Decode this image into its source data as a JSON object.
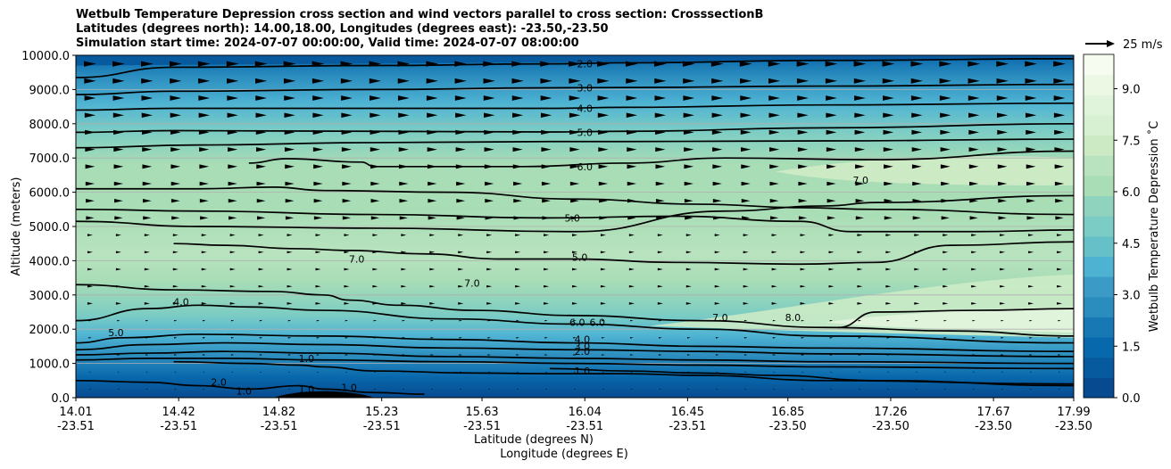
{
  "chart_data": {
    "type": "heatmap",
    "title_lines": [
      "Wetbulb Temperature Depression cross section and wind vectors parallel to cross section: CrosssectionB",
      "Latitudes (degrees north): 14.00,18.00, Longitudes (degrees east): -23.50,-23.50",
      "Simulation start time: 2024-07-07 00:00:00, Valid time: 2024-07-07 08:00:00"
    ],
    "xlabel_lat": "Latitude (degrees N)",
    "xlabel_lon": "Longitude (degrees E)",
    "ylabel": "Altitude (meters)",
    "ylim": [
      0,
      10000
    ],
    "y_ticks": [
      "0.0",
      "1000.0",
      "2000.0",
      "3000.0",
      "4000.0",
      "5000.0",
      "6000.0",
      "7000.0",
      "8000.0",
      "9000.0",
      "10000.0"
    ],
    "x_ticks": [
      {
        "lat": "14.01",
        "lon": "-23.51"
      },
      {
        "lat": "14.42",
        "lon": "-23.51"
      },
      {
        "lat": "14.82",
        "lon": "-23.51"
      },
      {
        "lat": "15.23",
        "lon": "-23.51"
      },
      {
        "lat": "15.63",
        "lon": "-23.51"
      },
      {
        "lat": "16.04",
        "lon": "-23.51"
      },
      {
        "lat": "16.45",
        "lon": "-23.51"
      },
      {
        "lat": "16.85",
        "lon": "-23.50"
      },
      {
        "lat": "17.26",
        "lon": "-23.50"
      },
      {
        "lat": "17.67",
        "lon": "-23.50"
      },
      {
        "lat": "17.99",
        "lon": "-23.50"
      }
    ],
    "colorbar": {
      "label": "Wetbulb Temperature Depression ˚C",
      "range": [
        0,
        10
      ],
      "ticks": [
        "0.0",
        "1.5",
        "3.0",
        "4.5",
        "6.0",
        "7.5",
        "9.0"
      ],
      "colors": [
        "#084a90",
        "#085a9f",
        "#0868ac",
        "#1778b4",
        "#2b8cbe",
        "#3b9ac6",
        "#4eb3d3",
        "#66c0c8",
        "#7bccc4",
        "#8fd3bf",
        "#a8ddb5",
        "#b8e3be",
        "#ccebc5",
        "#d8f0d2",
        "#e0f3db",
        "#edf8e4",
        "#f7fcf0"
      ]
    },
    "wind_key": {
      "label": "25 m/s"
    },
    "contour_labels": [
      {
        "text": "2.0",
        "x": 16.04,
        "y": 9750
      },
      {
        "text": "3.0",
        "x": 16.04,
        "y": 9050
      },
      {
        "text": "4.0",
        "x": 16.04,
        "y": 8450
      },
      {
        "text": "5.0",
        "x": 16.04,
        "y": 7750
      },
      {
        "text": "6.0",
        "x": 16.04,
        "y": 6750
      },
      {
        "text": "5.0",
        "x": 15.99,
        "y": 5250
      },
      {
        "text": "5.0",
        "x": 16.02,
        "y": 4100
      },
      {
        "text": "7.0",
        "x": 15.13,
        "y": 4050
      },
      {
        "text": "7.0",
        "x": 15.59,
        "y": 3350
      },
      {
        "text": "4.0",
        "x": 14.43,
        "y": 2800
      },
      {
        "text": "5.0",
        "x": 14.17,
        "y": 1900
      },
      {
        "text": "6.0",
        "x": 16.01,
        "y": 2200
      },
      {
        "text": "6.0",
        "x": 16.09,
        "y": 2200
      },
      {
        "text": "4.0",
        "x": 16.03,
        "y": 1700
      },
      {
        "text": "3.0",
        "x": 16.03,
        "y": 1500
      },
      {
        "text": "2.0",
        "x": 16.03,
        "y": 1350
      },
      {
        "text": "1.0",
        "x": 16.03,
        "y": 780
      },
      {
        "text": "1.0",
        "x": 14.93,
        "y": 1150
      },
      {
        "text": "1.0",
        "x": 14.93,
        "y": 250
      },
      {
        "text": "1.0",
        "x": 14.68,
        "y": 200
      },
      {
        "text": "2.0",
        "x": 14.58,
        "y": 450
      },
      {
        "text": "1.0",
        "x": 15.1,
        "y": 300
      },
      {
        "text": "7.0",
        "x": 16.58,
        "y": 2350
      },
      {
        "text": "8.0",
        "x": 16.87,
        "y": 2350
      },
      {
        "text": "7.0",
        "x": 17.14,
        "y": 6350
      }
    ],
    "contours": [
      {
        "level": 2.0,
        "pts": [
          [
            14.01,
            9350
          ],
          [
            14.4,
            9650
          ],
          [
            15.2,
            9700
          ],
          [
            15.9,
            9750
          ],
          [
            16.2,
            9780
          ],
          [
            17.0,
            9850
          ],
          [
            17.99,
            9900
          ]
        ]
      },
      {
        "level": 3.0,
        "pts": [
          [
            14.01,
            8850
          ],
          [
            14.4,
            8950
          ],
          [
            15.2,
            9000
          ],
          [
            15.9,
            9050
          ],
          [
            16.2,
            9060
          ],
          [
            17.0,
            9100
          ],
          [
            17.99,
            9150
          ]
        ]
      },
      {
        "level": 4.0,
        "pts": [
          [
            14.01,
            8400
          ],
          [
            14.4,
            8450
          ],
          [
            15.2,
            8450
          ],
          [
            15.9,
            8450
          ],
          [
            16.2,
            8480
          ],
          [
            17.0,
            8550
          ],
          [
            17.99,
            8600
          ]
        ]
      },
      {
        "level": 5.0,
        "pts": [
          [
            14.01,
            7750
          ],
          [
            14.4,
            7800
          ],
          [
            15.2,
            7780
          ],
          [
            15.9,
            7760
          ],
          [
            16.2,
            7780
          ],
          [
            17.0,
            7880
          ],
          [
            17.99,
            8000
          ]
        ]
      },
      {
        "level": 5.0,
        "pts": [
          [
            14.01,
            7300
          ],
          [
            14.5,
            7380
          ],
          [
            15.2,
            7450
          ],
          [
            15.9,
            7480
          ],
          [
            16.2,
            7480
          ],
          [
            17.0,
            7500
          ],
          [
            17.99,
            7550
          ]
        ]
      },
      {
        "level": 6.0,
        "pts": [
          [
            14.7,
            6850
          ],
          [
            14.85,
            6980
          ],
          [
            15.15,
            6880
          ],
          [
            15.2,
            6750
          ],
          [
            15.8,
            6750
          ],
          [
            16.2,
            6850
          ],
          [
            16.6,
            7000
          ],
          [
            17.2,
            6950
          ],
          [
            17.99,
            7200
          ]
        ]
      },
      {
        "level": 6.0,
        "pts": [
          [
            14.01,
            6100
          ],
          [
            14.5,
            6100
          ],
          [
            14.8,
            6150
          ],
          [
            15.0,
            6050
          ],
          [
            15.5,
            6000
          ],
          [
            16.0,
            5800
          ],
          [
            16.5,
            5650
          ],
          [
            16.9,
            5550
          ],
          [
            17.2,
            5500
          ],
          [
            17.99,
            5350
          ]
        ]
      },
      {
        "level": 5.0,
        "pts": [
          [
            14.01,
            5500
          ],
          [
            14.5,
            5450
          ],
          [
            15.2,
            5350
          ],
          [
            15.9,
            5250
          ],
          [
            16.4,
            5300
          ],
          [
            16.9,
            5150
          ],
          [
            17.1,
            4850
          ],
          [
            17.6,
            4850
          ],
          [
            17.99,
            4900
          ]
        ]
      },
      {
        "level": 6.0,
        "pts": [
          [
            14.01,
            5150
          ],
          [
            14.5,
            5000
          ],
          [
            15.2,
            4950
          ],
          [
            16.0,
            4850
          ],
          [
            16.6,
            5450
          ],
          [
            17.0,
            5600
          ],
          [
            17.2,
            5700
          ],
          [
            17.99,
            5900
          ]
        ]
      },
      {
        "level": 7.0,
        "pts": [
          [
            14.4,
            4500
          ],
          [
            14.6,
            4450
          ],
          [
            14.9,
            4350
          ],
          [
            15.1,
            4300
          ],
          [
            15.4,
            4200
          ],
          [
            15.7,
            4050
          ],
          [
            16.0,
            4050
          ],
          [
            16.4,
            3950
          ],
          [
            16.9,
            3900
          ],
          [
            17.2,
            3950
          ],
          [
            17.5,
            4450
          ],
          [
            17.99,
            4550
          ]
        ]
      },
      {
        "level": 7.0,
        "pts": [
          [
            14.01,
            3300
          ],
          [
            14.4,
            3150
          ],
          [
            14.8,
            3100
          ],
          [
            15.0,
            3000
          ],
          [
            15.1,
            2850
          ],
          [
            15.3,
            2700
          ],
          [
            15.6,
            2550
          ],
          [
            16.0,
            2400
          ],
          [
            16.5,
            2250
          ],
          [
            17.0,
            2050
          ],
          [
            17.5,
            1950
          ],
          [
            17.99,
            1800
          ]
        ]
      },
      {
        "level": 7.0,
        "pts": [
          [
            14.01,
            2250
          ],
          [
            14.3,
            2600
          ],
          [
            14.5,
            2700
          ],
          [
            14.7,
            2650
          ],
          [
            15.0,
            2550
          ],
          [
            15.5,
            2300
          ],
          [
            16.0,
            2150
          ],
          [
            16.5,
            2000
          ],
          [
            17.0,
            1800
          ],
          [
            17.99,
            1600
          ]
        ]
      },
      {
        "level": 8.0,
        "pts": [
          [
            17.05,
            2050
          ],
          [
            17.2,
            2500
          ],
          [
            17.6,
            2550
          ],
          [
            17.99,
            2600
          ]
        ]
      },
      {
        "level": 5.0,
        "pts": [
          [
            14.01,
            1600
          ],
          [
            14.2,
            1750
          ],
          [
            14.5,
            1850
          ],
          [
            15.0,
            1800
          ],
          [
            15.5,
            1700
          ],
          [
            16.0,
            1600
          ],
          [
            16.5,
            1500
          ],
          [
            17.0,
            1450
          ],
          [
            17.99,
            1350
          ]
        ]
      },
      {
        "level": 4.0,
        "pts": [
          [
            14.01,
            1400
          ],
          [
            14.3,
            1550
          ],
          [
            14.6,
            1600
          ],
          [
            15.0,
            1550
          ],
          [
            15.5,
            1450
          ],
          [
            16.0,
            1400
          ],
          [
            16.5,
            1350
          ],
          [
            17.0,
            1280
          ],
          [
            17.99,
            1200
          ]
        ]
      },
      {
        "level": 3.0,
        "pts": [
          [
            14.01,
            1250
          ],
          [
            14.3,
            1300
          ],
          [
            14.6,
            1350
          ],
          [
            15.0,
            1300
          ],
          [
            15.5,
            1200
          ],
          [
            16.0,
            1150
          ],
          [
            16.5,
            1100
          ],
          [
            17.0,
            1050
          ],
          [
            17.99,
            1000
          ]
        ]
      },
      {
        "level": 2.0,
        "pts": [
          [
            14.01,
            1100
          ],
          [
            14.3,
            1150
          ],
          [
            14.6,
            1150
          ],
          [
            15.0,
            1100
          ],
          [
            15.5,
            1050
          ],
          [
            16.0,
            1000
          ],
          [
            16.5,
            950
          ],
          [
            17.0,
            900
          ],
          [
            17.99,
            850
          ]
        ]
      },
      {
        "level": 1.0,
        "pts": [
          [
            14.4,
            1050
          ],
          [
            14.7,
            1000
          ],
          [
            14.9,
            950
          ],
          [
            15.0,
            900
          ],
          [
            15.2,
            780
          ],
          [
            15.6,
            720
          ],
          [
            15.9,
            700
          ],
          [
            16.2,
            700
          ],
          [
            16.5,
            650
          ],
          [
            17.0,
            500
          ],
          [
            17.99,
            400
          ]
        ]
      },
      {
        "level": 1.0,
        "pts": [
          [
            14.01,
            500
          ],
          [
            14.3,
            450
          ],
          [
            14.5,
            350
          ],
          [
            14.7,
            250
          ],
          [
            14.9,
            350
          ],
          [
            15.0,
            250
          ],
          [
            15.2,
            150
          ],
          [
            15.4,
            100
          ]
        ]
      },
      {
        "level": 1.0,
        "pts": [
          [
            15.9,
            850
          ],
          [
            16.2,
            780
          ],
          [
            16.5,
            720
          ],
          [
            16.8,
            650
          ],
          [
            17.2,
            500
          ],
          [
            17.99,
            350
          ]
        ]
      }
    ],
    "wind_vectors": "uniform rightward (eastward-parallel) arrows on a regular grid; stronger aloft (5000–10000 m)"
  }
}
